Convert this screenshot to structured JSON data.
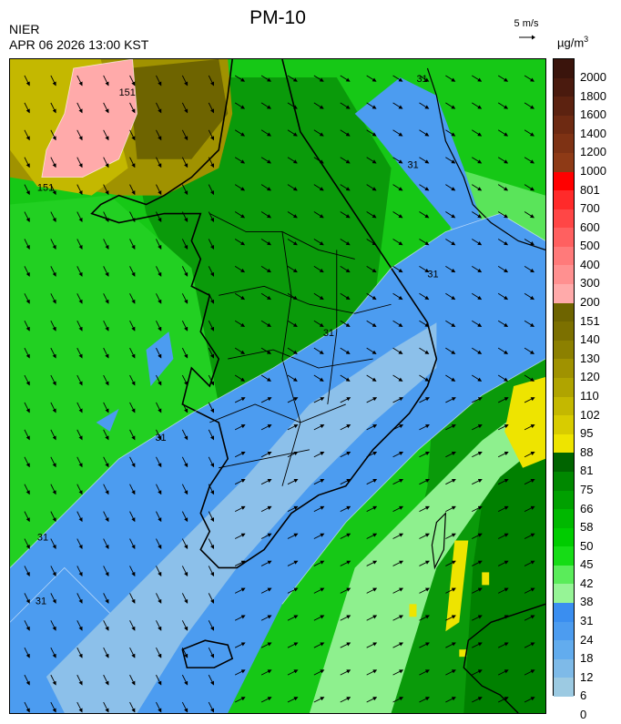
{
  "header": {
    "agency": "NIER",
    "timestamp": "APR 06 2026 13:00 KST",
    "title": "PM-10",
    "wind_reference": "5 m/s",
    "unit_base": "µg/m",
    "unit_exp": "3"
  },
  "legend": {
    "labels": [
      "2000",
      "1800",
      "1600",
      "1400",
      "1200",
      "1000",
      "801",
      "700",
      "600",
      "500",
      "400",
      "300",
      "200",
      "151",
      "140",
      "130",
      "120",
      "110",
      "102",
      "95",
      "88",
      "81",
      "75",
      "66",
      "58",
      "50",
      "45",
      "42",
      "38",
      "31",
      "24",
      "18",
      "12",
      "6",
      "0"
    ],
    "colors": [
      "#3a140c",
      "#4a1a0e",
      "#5c2210",
      "#6e2a12",
      "#7e3214",
      "#8e3a16",
      "#ff0000",
      "#ff2a2a",
      "#ff4646",
      "#ff6060",
      "#ff7a7a",
      "#ff9090",
      "#ffaaaa",
      "#6e6400",
      "#7c7000",
      "#8c8000",
      "#a09200",
      "#b0a400",
      "#c4b800",
      "#d8cc00",
      "#eee400",
      "#006400",
      "#008800",
      "#00a000",
      "#00b800",
      "#00cc00",
      "#16dc16",
      "#5aec5a",
      "#96f496",
      "#3a8ef0",
      "#4c9cf0",
      "#62acee",
      "#7ebae8",
      "#9ccae2"
    ]
  },
  "map": {
    "contour_labels": [
      "151",
      "151",
      "31",
      "31",
      "31",
      "31",
      "31",
      "31",
      "31"
    ]
  }
}
